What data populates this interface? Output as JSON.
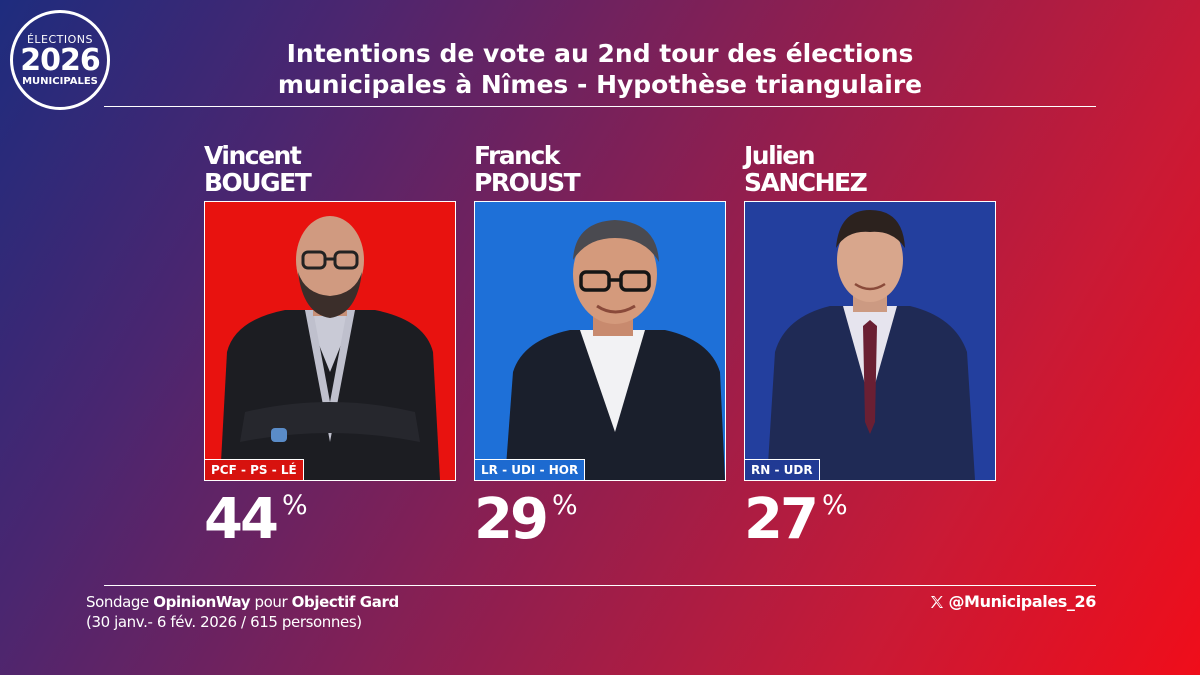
{
  "logo": {
    "line1": "ÉLECTIONS",
    "line2": "2026",
    "line3": "MUNICIPALES"
  },
  "title": {
    "line1": "Intentions de vote au 2nd tour des élections",
    "line2": "municipales à Nîmes - Hypothèse triangulaire"
  },
  "candidates": [
    {
      "first": "Vincent",
      "last": "BOUGET",
      "party": "PCF - PS - LÉ",
      "score": "44",
      "unit": "%",
      "photo_bg": "#e8120f",
      "badge_bg": "#d7120e"
    },
    {
      "first": "Franck",
      "last": "PROUST",
      "party": "LR - UDI - HOR",
      "score": "29",
      "unit": "%",
      "photo_bg": "#1e70d8",
      "badge_bg": "#1d6ad0"
    },
    {
      "first": "Julien",
      "last": "SANCHEZ",
      "party": "RN - UDR",
      "score": "27",
      "unit": "%",
      "photo_bg": "#233f9e",
      "badge_bg": "#213a94"
    }
  ],
  "source": {
    "prefix": "Sondage ",
    "institute": "OpinionWay",
    "middle": " pour ",
    "client": "Objectif Gard",
    "details": "(30 janv.- 6 fév. 2026 / 615 personnes)"
  },
  "handle": {
    "icon": "x-logo-icon",
    "text": "@Municipales_26"
  }
}
